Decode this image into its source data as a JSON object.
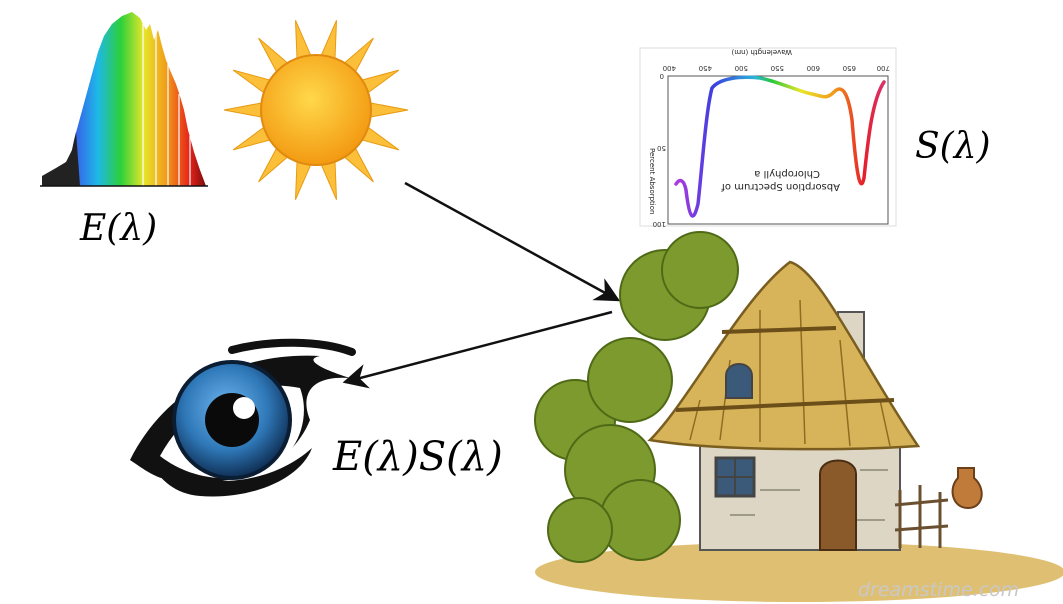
{
  "labels": {
    "illuminant": "E(λ)",
    "reflectance": "S(λ)",
    "observed": "E(λ)S(λ)"
  },
  "absorption_chart": {
    "title_lines": [
      "Absorption Spectrum of",
      "Chlorophyll a"
    ],
    "x_axis_label": "Wavelength (nm)",
    "y_axis_label": "Percent Absorption",
    "x_ticks": [
      "400",
      "450",
      "500",
      "550",
      "600",
      "650",
      "700"
    ],
    "y_ticks": [
      "0",
      "50",
      "100"
    ]
  },
  "watermark": "dreamstime.com",
  "colors": {
    "arrow": "#111111",
    "sun_core": "#f7a91a",
    "sun_ray": "#fbbf3a",
    "iris": "#2f78b8",
    "thatch": "#d7b35a",
    "foliage": "#7d9a2e"
  },
  "icons": [
    "spectrum-icon",
    "sun-icon",
    "eye-icon",
    "cottage-icon"
  ]
}
